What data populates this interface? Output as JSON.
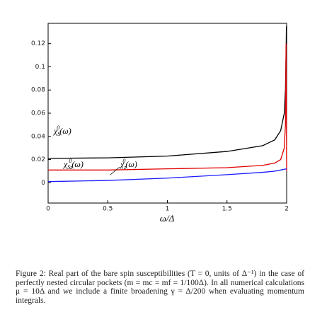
{
  "chart_data": {
    "type": "line",
    "xlabel": "ω/Δ",
    "xlim": [
      0,
      2
    ],
    "xticks": [
      0,
      0.5,
      1,
      1.5,
      2
    ],
    "ylim": [
      -0.0175,
      0.1375
    ],
    "yticks": [
      0,
      0.02,
      0.04,
      0.06,
      0.08,
      0.1,
      0.12
    ],
    "series": [
      {
        "name": {
          "base": "χ",
          "sub": "S",
          "sup": "0",
          "arg": "(ω)"
        },
        "color": "#000000",
        "x": [
          0,
          0.5,
          1,
          1.5,
          1.8,
          1.9,
          1.95,
          1.98,
          1.99,
          1.995,
          1.998
        ],
        "values": [
          0.021,
          0.0215,
          0.023,
          0.027,
          0.032,
          0.037,
          0.045,
          0.06,
          0.08,
          0.11,
          0.135
        ]
      },
      {
        "name": {
          "base": "χ",
          "sub": "Sz",
          "sup": "0",
          "arg": "(ω)"
        },
        "color": "#e00000",
        "x": [
          0,
          0.5,
          1,
          1.5,
          1.8,
          1.9,
          1.95,
          1.98,
          1.99,
          1.995,
          1.998,
          2
        ],
        "values": [
          0.011,
          0.011,
          0.012,
          0.013,
          0.015,
          0.017,
          0.02,
          0.03,
          0.05,
          0.12,
          0.06,
          0.01
        ]
      },
      {
        "name": {
          "base": "χ",
          "sub": "z",
          "sup": "0",
          "arg": "(ω)"
        },
        "color": "#1a1aff",
        "x": [
          0,
          0.5,
          1,
          1.5,
          1.8,
          1.9,
          1.95,
          2
        ],
        "values": [
          0.001,
          0.002,
          0.004,
          0.007,
          0.009,
          0.01,
          0.011,
          0.012
        ]
      }
    ]
  },
  "caption": {
    "label": "Figure 2:",
    "text": "Real part of the bare spin susceptibilities (T = 0, units of Δ⁻¹) in the case of perfectly nested circular pockets (m = mc = mf = 1/100Δ). In all numerical calculations μ = 10Δ and we include a finite broadening γ = Δ/200 when evaluating momentum integrals."
  }
}
